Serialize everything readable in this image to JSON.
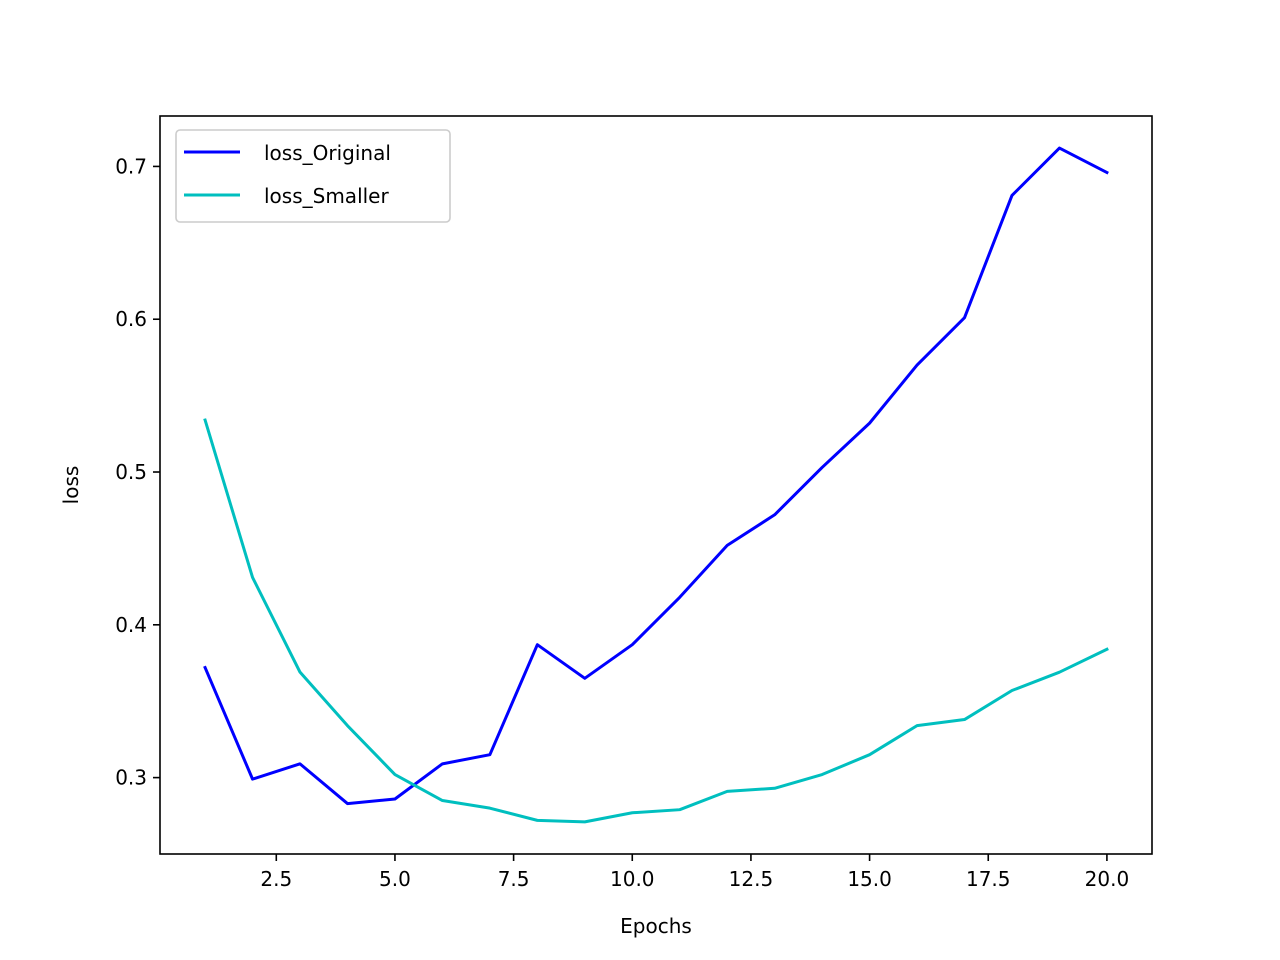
{
  "chart_data": {
    "type": "line",
    "title": "",
    "xlabel": "Epochs",
    "ylabel": "loss",
    "xlim": [
      0.05,
      20.95
    ],
    "ylim": [
      0.25,
      0.733
    ],
    "x_ticks": [
      2.5,
      5.0,
      7.5,
      10.0,
      12.5,
      15.0,
      17.5,
      20.0
    ],
    "x_tick_labels": [
      "2.5",
      "5.0",
      "7.5",
      "10.0",
      "12.5",
      "15.0",
      "17.5",
      "20.0"
    ],
    "y_ticks": [
      0.3,
      0.4,
      0.5,
      0.6,
      0.7
    ],
    "y_tick_labels": [
      "0.3",
      "0.4",
      "0.5",
      "0.6",
      "0.7"
    ],
    "grid": false,
    "legend_position": "top-left",
    "x": [
      1,
      2,
      3,
      4,
      5,
      6,
      7,
      8,
      9,
      10,
      11,
      12,
      13,
      14,
      15,
      16,
      17,
      18,
      19,
      20
    ],
    "series": [
      {
        "name": "loss_Original",
        "color": "#0000ff",
        "values": [
          0.372,
          0.299,
          0.309,
          0.283,
          0.286,
          0.309,
          0.315,
          0.387,
          0.365,
          0.387,
          0.418,
          0.452,
          0.472,
          0.503,
          0.532,
          0.57,
          0.601,
          0.681,
          0.712,
          0.696
        ]
      },
      {
        "name": "loss_Smaller",
        "color": "#00bfbf",
        "values": [
          0.534,
          0.431,
          0.369,
          0.334,
          0.302,
          0.285,
          0.28,
          0.272,
          0.271,
          0.277,
          0.279,
          0.291,
          0.293,
          0.302,
          0.315,
          0.334,
          0.338,
          0.357,
          0.369,
          0.384
        ]
      }
    ]
  }
}
